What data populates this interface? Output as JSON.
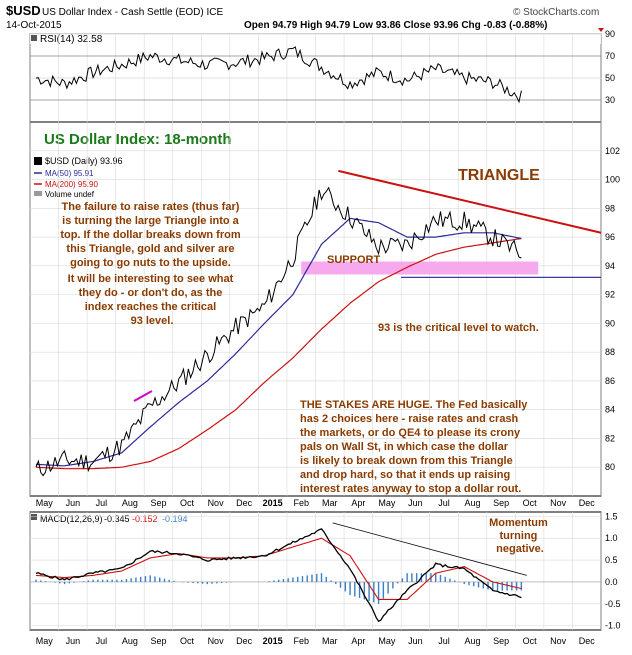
{
  "header": {
    "symbol": "$USD",
    "name": "US Dollar Index - Cash Settle (EOD) ICE",
    "date": "14-Oct-2015",
    "ohlc": "Open 94.79  High 94.79  Low 93.86  Close 93.96  Chg -0.83 (-0.88%)",
    "watermark": "© StockCharts.com"
  },
  "rsi": {
    "label": "RSI(14) 32.58",
    "ticks": [
      "90",
      "70",
      "50",
      "30"
    ]
  },
  "price_panel": {
    "title": "US Dollar Index: 18-month",
    "legend": [
      "$USD (Daily) 93.96",
      "MA(50) 95.91",
      "MA(200) 95.90",
      "Volume undef"
    ],
    "ticks": [
      "102",
      "100",
      "98",
      "96",
      "94",
      "92",
      "90",
      "88",
      "86",
      "84",
      "82",
      "80"
    ],
    "triangle_label": "TRIANGLE",
    "support_label": "SUPPORT",
    "note_left": [
      "The failure to raise rates (thus far)",
      "is turning the large Triangle into a",
      "top. If the dollar breaks down from",
      "this Triangle, gold and silver are",
      "going to go nuts to the upside.",
      "It will be interesting to see what",
      "they do - or don't do, as the",
      "index reaches the critical",
      "93 level."
    ],
    "note_critical": "93 is the critical level to watch.",
    "note_stakes": [
      "THE STAKES ARE HUGE. The Fed basically",
      "has 2 choices here - raise rates and crash",
      "the markets, or do QE4 to please its crony",
      "pals on Wall St, in which case the dollar",
      "is likely to break down from this Triangle",
      "and drop hard, so that it ends up raising",
      "interest rates anyway to stop a dollar rout."
    ]
  },
  "macd": {
    "label": "MACD(12,26,9)",
    "value1": "-0.345",
    "value2": "-0.152",
    "value3": "-0.194",
    "ticks": [
      "1.5",
      "1.0",
      "0.5",
      "0.0",
      "-0.5",
      "-1.0"
    ],
    "note": [
      "Momentum",
      "turning",
      "negative."
    ]
  },
  "x_axis": {
    "labels": [
      "May",
      "Jun",
      "Jul",
      "Aug",
      "Sep",
      "Oct",
      "Nov",
      "Dec",
      "2015",
      "Feb",
      "Mar",
      "Apr",
      "May",
      "Jun",
      "Jul",
      "Aug",
      "Sep",
      "Oct",
      "Nov",
      "Dec"
    ]
  },
  "colors": {
    "ma50": "#2a2a9a",
    "ma200": "#cc1111",
    "annotation": "#8a3b00",
    "title_green": "#1a7a1a",
    "support_band": "#f7a9ee",
    "macd_hist": "#3a7fc4"
  },
  "chart_data": [
    {
      "type": "line",
      "title": "RSI(14) 32.58",
      "ylim": [
        10,
        90
      ],
      "x": [
        "May",
        "Jun",
        "Jul",
        "Aug",
        "Sep",
        "Oct",
        "Nov",
        "Dec",
        "Jan",
        "Feb",
        "Mar",
        "Apr",
        "May",
        "Jun",
        "Jul",
        "Aug",
        "Sep",
        "Oct"
      ],
      "series": [
        {
          "name": "RSI(14)",
          "values": [
            50,
            45,
            55,
            62,
            70,
            66,
            62,
            64,
            68,
            75,
            60,
            45,
            55,
            48,
            58,
            50,
            46,
            33
          ]
        }
      ]
    },
    {
      "type": "line",
      "title": "US Dollar Index: 18-month",
      "ylim": [
        78,
        104
      ],
      "x": [
        "May",
        "Jun",
        "Jul",
        "Aug",
        "Sep",
        "Oct",
        "Nov",
        "Dec",
        "Jan",
        "Feb",
        "Mar",
        "Apr",
        "May",
        "Jun",
        "Jul",
        "Aug",
        "Sep",
        "Oct"
      ],
      "series": [
        {
          "name": "$USD (Daily)",
          "values": [
            79.8,
            80.5,
            80.4,
            81.5,
            84.2,
            85.9,
            87.8,
            89.7,
            91.2,
            94.6,
            99.3,
            97.4,
            95.3,
            95.5,
            97.2,
            97.1,
            96.0,
            94.8
          ]
        },
        {
          "name": "MA(50)",
          "values": [
            80.2,
            80.1,
            80.4,
            81.0,
            82.8,
            84.5,
            86.0,
            87.9,
            90.0,
            92.0,
            95.5,
            97.3,
            97.0,
            96.0,
            96.0,
            96.3,
            96.3,
            95.9
          ]
        },
        {
          "name": "MA(200)",
          "values": [
            80.0,
            79.9,
            79.9,
            80.0,
            80.4,
            81.3,
            82.6,
            84.0,
            85.9,
            87.6,
            89.6,
            91.4,
            92.9,
            93.9,
            94.8,
            95.3,
            95.6,
            95.9
          ]
        }
      ],
      "annotations": {
        "triangle_top": [
          100.6,
          96.3
        ],
        "support": 93.2
      }
    },
    {
      "type": "line",
      "title": "MACD(12,26,9)",
      "ylim": [
        -1.1,
        1.6
      ],
      "x": [
        "May",
        "Jun",
        "Jul",
        "Aug",
        "Sep",
        "Oct",
        "Nov",
        "Dec",
        "Jan",
        "Feb",
        "Mar",
        "Apr",
        "May",
        "Jun",
        "Jul",
        "Aug",
        "Sep",
        "Oct"
      ],
      "series": [
        {
          "name": "MACD",
          "values": [
            0.2,
            0.05,
            0.2,
            0.3,
            0.7,
            0.65,
            0.5,
            0.55,
            0.6,
            0.9,
            1.2,
            0.3,
            -0.9,
            -0.2,
            0.4,
            0.3,
            -0.2,
            -0.345
          ]
        },
        {
          "name": "Signal",
          "values": [
            0.15,
            0.1,
            0.15,
            0.25,
            0.55,
            0.65,
            0.55,
            0.55,
            0.6,
            0.8,
            1.0,
            0.6,
            -0.4,
            -0.4,
            0.2,
            0.35,
            0.0,
            -0.152
          ]
        },
        {
          "name": "Histogram",
          "values": [
            0.05,
            -0.05,
            0.05,
            0.05,
            0.15,
            0.0,
            -0.05,
            0.0,
            0.0,
            0.1,
            0.2,
            -0.3,
            -0.5,
            0.2,
            0.2,
            -0.05,
            -0.2,
            -0.194
          ]
        }
      ]
    }
  ]
}
